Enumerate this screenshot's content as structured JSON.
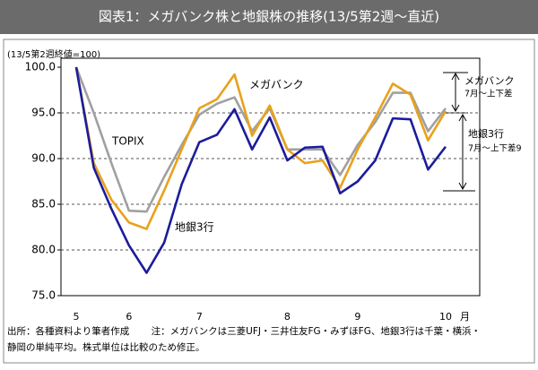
{
  "chart_data": {
    "type": "line",
    "title": "図表1：メガバンク株と地銀株の推移(13/5第2週～直近)",
    "y_axis_label": "(13/5第2週終値=100)",
    "x_unit": "月",
    "categories": [
      "5",
      null,
      null,
      "6",
      null,
      null,
      null,
      "7",
      null,
      null,
      null,
      null,
      "8",
      null,
      null,
      null,
      "9",
      null,
      null,
      null,
      null,
      "10"
    ],
    "series": [
      {
        "name": "TOPIX",
        "color": "#a0a0a0",
        "values": [
          100,
          95,
          89.5,
          84.3,
          84.2,
          88,
          91.5,
          94.8,
          96,
          96.7,
          93,
          95.5,
          91,
          91,
          91,
          88.2,
          91.5,
          94,
          97.2,
          97.2,
          93,
          95.5
        ]
      },
      {
        "name": "メガバンク",
        "color": "#e8a21c",
        "values": [
          100,
          89.5,
          85.5,
          83,
          82.3,
          86.5,
          91,
          95.5,
          96.5,
          99.2,
          92.5,
          95.8,
          91,
          89.5,
          89.8,
          86.8,
          91,
          94.5,
          98.2,
          97,
          92,
          95.2
        ]
      },
      {
        "name": "地銀3行",
        "color": "#1c1c9c",
        "values": [
          100,
          89,
          84.5,
          80.5,
          77.5,
          80.8,
          87.2,
          91.8,
          92.6,
          95.4,
          91,
          94.5,
          89.8,
          91.2,
          91.3,
          86.2,
          87.5,
          89.8,
          94.4,
          94.3,
          88.8,
          91.3
        ]
      }
    ],
    "ylim": [
      75,
      100
    ],
    "yticks": [
      {
        "value": 75,
        "label": "75.0"
      },
      {
        "value": 80,
        "label": "80.0"
      },
      {
        "value": 85,
        "label": "85.0"
      },
      {
        "value": 90,
        "label": "90.0"
      },
      {
        "value": 95,
        "label": "95.0"
      },
      {
        "value": 100,
        "label": "100.0"
      }
    ],
    "grid": true,
    "annotations": [
      "メガバンク",
      "7月～上下差",
      "地銀3行",
      "7月～上下差9"
    ],
    "notes": [
      "出所：各種資料より筆者作成　　 注：メガバンクは三菱UFJ・三井住友FG・みずほFG、地銀3行は千葉・横浜・",
      "静岡の単純平均。株式単位は比較のため修正。"
    ]
  }
}
